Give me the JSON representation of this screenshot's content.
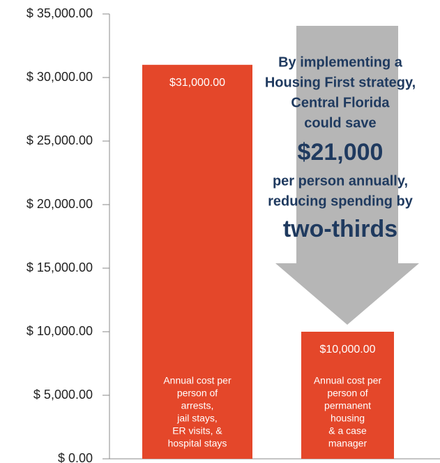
{
  "chart_data": {
    "type": "bar",
    "categories": [
      [
        "Annual cost per",
        "person of",
        "arrests,",
        "jail stays,",
        "ER visits, &",
        "hospital stays"
      ],
      [
        "Annual cost per",
        "person of",
        "permanent",
        "housing",
        "& a case",
        "manager"
      ]
    ],
    "values": [
      31000,
      10000
    ],
    "value_labels": [
      "$31,000.00",
      "$10,000.00"
    ],
    "color": "#e4472a",
    "ylim": [
      0,
      35000
    ],
    "yticks": [
      {
        "value": 0,
        "label": "$ 0.00"
      },
      {
        "value": 5000,
        "label": "$ 5,000.00"
      },
      {
        "value": 10000,
        "label": "$ 10,000.00"
      },
      {
        "value": 15000,
        "label": "$ 15,000.00"
      },
      {
        "value": 20000,
        "label": "$ 20,000.00"
      },
      {
        "value": 25000,
        "label": "$ 25,000.00"
      },
      {
        "value": 30000,
        "label": "$ 30,000.00"
      },
      {
        "value": 35000,
        "label": "$ 35,000.00"
      }
    ],
    "annotation": [
      "By implementing a",
      "Housing First strategy,",
      "Central Florida",
      "could save",
      "$21,000",
      "per person annually,",
      "reducing spending by",
      "two-thirds"
    ]
  }
}
